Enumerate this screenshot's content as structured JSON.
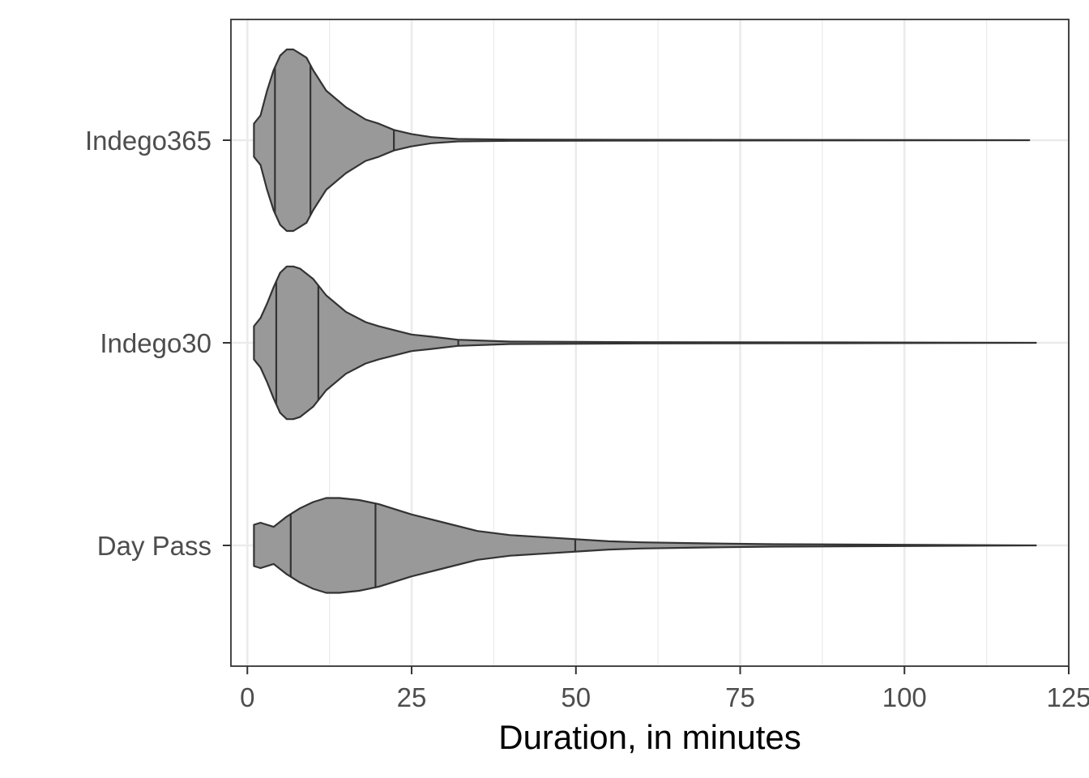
{
  "chart_data": {
    "type": "violin",
    "orientation": "horizontal",
    "xlabel": "Duration, in minutes",
    "ylabel": "",
    "xlim": [
      -2.5,
      125
    ],
    "x_ticks": [
      0,
      25,
      50,
      75,
      100,
      125
    ],
    "x_tick_labels": [
      "0",
      "25",
      "50",
      "75",
      "100",
      "125"
    ],
    "categories": [
      "Indego365",
      "Indego30",
      "Day Pass"
    ],
    "grid": true,
    "legend": "none",
    "fill_color": "#999999",
    "outline_color": "#333333",
    "series": [
      {
        "category": "Indego365",
        "min": 1,
        "max": 119,
        "quantiles": [
          4.2,
          9.6,
          22.3
        ],
        "density_profile": [
          [
            1,
            0.08
          ],
          [
            1.5,
            0.1
          ],
          [
            2,
            0.12
          ],
          [
            3,
            0.24
          ],
          [
            4,
            0.34
          ],
          [
            5,
            0.41
          ],
          [
            6,
            0.44
          ],
          [
            7,
            0.44
          ],
          [
            8,
            0.42
          ],
          [
            9,
            0.4
          ],
          [
            10,
            0.34
          ],
          [
            12,
            0.24
          ],
          [
            15,
            0.16
          ],
          [
            18,
            0.1
          ],
          [
            20,
            0.08
          ],
          [
            22.3,
            0.05
          ],
          [
            25,
            0.03
          ],
          [
            28,
            0.015
          ],
          [
            32,
            0.006
          ],
          [
            40,
            0.003
          ],
          [
            60,
            0.002
          ],
          [
            90,
            0.001
          ],
          [
            119,
            0
          ]
        ]
      },
      {
        "category": "Indego30",
        "min": 1,
        "max": 120,
        "quantiles": [
          4.4,
          10.8,
          32.1
        ],
        "density_profile": [
          [
            1,
            0.08
          ],
          [
            1.5,
            0.1
          ],
          [
            2,
            0.12
          ],
          [
            3,
            0.19
          ],
          [
            4,
            0.27
          ],
          [
            5,
            0.34
          ],
          [
            6,
            0.37
          ],
          [
            7,
            0.37
          ],
          [
            8,
            0.36
          ],
          [
            10,
            0.31
          ],
          [
            12,
            0.23
          ],
          [
            15,
            0.15
          ],
          [
            18,
            0.1
          ],
          [
            20,
            0.08
          ],
          [
            25,
            0.04
          ],
          [
            28,
            0.03
          ],
          [
            32,
            0.015
          ],
          [
            40,
            0.006
          ],
          [
            60,
            0.003
          ],
          [
            90,
            0.002
          ],
          [
            120,
            0
          ]
        ]
      },
      {
        "category": "Day Pass",
        "min": 1,
        "max": 120,
        "quantiles": [
          6.6,
          19.5,
          49.9
        ],
        "density_profile": [
          [
            1,
            0.1
          ],
          [
            2,
            0.11
          ],
          [
            4,
            0.09
          ],
          [
            6,
            0.14
          ],
          [
            8,
            0.18
          ],
          [
            10,
            0.21
          ],
          [
            12,
            0.23
          ],
          [
            14,
            0.23
          ],
          [
            17,
            0.22
          ],
          [
            20,
            0.2
          ],
          [
            25,
            0.15
          ],
          [
            30,
            0.11
          ],
          [
            35,
            0.07
          ],
          [
            40,
            0.05
          ],
          [
            45,
            0.04
          ],
          [
            50,
            0.03
          ],
          [
            55,
            0.02
          ],
          [
            60,
            0.015
          ],
          [
            70,
            0.01
          ],
          [
            80,
            0.006
          ],
          [
            100,
            0.003
          ],
          [
            120,
            0
          ]
        ]
      }
    ]
  }
}
